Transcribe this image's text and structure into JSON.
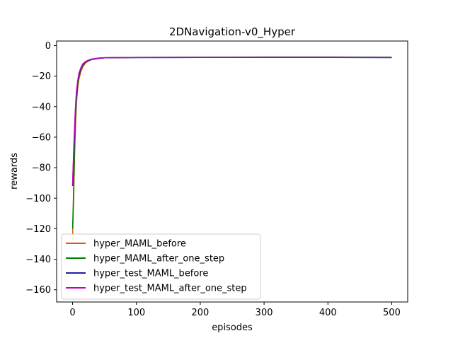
{
  "chart_data": {
    "type": "line",
    "title": "2DNavigation-v0_Hyper",
    "xlabel": "episodes",
    "ylabel": "rewards",
    "xlim": [
      -25,
      525
    ],
    "ylim": [
      -168,
      3
    ],
    "xticks": [
      0,
      100,
      200,
      300,
      400,
      500
    ],
    "yticks": [
      0,
      -20,
      -40,
      -60,
      -80,
      -100,
      -120,
      -140,
      -160
    ],
    "grid": false,
    "legend_position": "lower-left",
    "series": [
      {
        "name": "hyper_MAML_before",
        "color": "#e6550d",
        "values": [
          {
            "x": 0,
            "y": -125
          },
          {
            "x": 1,
            "y": -110
          },
          {
            "x": 2,
            "y": -95
          },
          {
            "x": 3,
            "y": -75
          },
          {
            "x": 4,
            "y": -60
          },
          {
            "x": 5,
            "y": -48
          },
          {
            "x": 6,
            "y": -38
          },
          {
            "x": 8,
            "y": -28
          },
          {
            "x": 10,
            "y": -22
          },
          {
            "x": 13,
            "y": -17
          },
          {
            "x": 16,
            "y": -14
          },
          {
            "x": 20,
            "y": -11.5
          },
          {
            "x": 25,
            "y": -10
          },
          {
            "x": 30,
            "y": -9.2
          },
          {
            "x": 40,
            "y": -8.5
          },
          {
            "x": 50,
            "y": -8
          },
          {
            "x": 100,
            "y": -7.8
          },
          {
            "x": 200,
            "y": -7.7
          },
          {
            "x": 300,
            "y": -7.6
          },
          {
            "x": 400,
            "y": -7.6
          },
          {
            "x": 500,
            "y": -7.7
          }
        ]
      },
      {
        "name": "hyper_MAML_after_one_step",
        "color": "#008000",
        "values": [
          {
            "x": 0,
            "y": -120
          },
          {
            "x": 1,
            "y": -105
          },
          {
            "x": 2,
            "y": -88
          },
          {
            "x": 3,
            "y": -70
          },
          {
            "x": 4,
            "y": -55
          },
          {
            "x": 5,
            "y": -44
          },
          {
            "x": 6,
            "y": -35
          },
          {
            "x": 8,
            "y": -26
          },
          {
            "x": 10,
            "y": -20
          },
          {
            "x": 13,
            "y": -16
          },
          {
            "x": 16,
            "y": -13
          },
          {
            "x": 20,
            "y": -11
          },
          {
            "x": 25,
            "y": -9.8
          },
          {
            "x": 30,
            "y": -9
          },
          {
            "x": 40,
            "y": -8.3
          },
          {
            "x": 50,
            "y": -8
          },
          {
            "x": 100,
            "y": -7.7
          },
          {
            "x": 200,
            "y": -7.6
          },
          {
            "x": 300,
            "y": -7.5
          },
          {
            "x": 400,
            "y": -7.5
          },
          {
            "x": 500,
            "y": -7.6
          }
        ]
      },
      {
        "name": "hyper_test_MAML_before",
        "color": "#1f1fa0",
        "values": [
          {
            "x": 0,
            "y": -92
          },
          {
            "x": 1,
            "y": -80
          },
          {
            "x": 2,
            "y": -68
          },
          {
            "x": 3,
            "y": -57
          },
          {
            "x": 4,
            "y": -47
          },
          {
            "x": 5,
            "y": -39
          },
          {
            "x": 6,
            "y": -32
          },
          {
            "x": 8,
            "y": -24
          },
          {
            "x": 10,
            "y": -19
          },
          {
            "x": 13,
            "y": -15
          },
          {
            "x": 16,
            "y": -12.5
          },
          {
            "x": 20,
            "y": -10.8
          },
          {
            "x": 25,
            "y": -9.8
          },
          {
            "x": 30,
            "y": -9
          },
          {
            "x": 40,
            "y": -8.4
          },
          {
            "x": 50,
            "y": -8
          },
          {
            "x": 100,
            "y": -7.9
          },
          {
            "x": 200,
            "y": -7.8
          },
          {
            "x": 300,
            "y": -7.8
          },
          {
            "x": 400,
            "y": -7.8
          },
          {
            "x": 500,
            "y": -7.9
          }
        ]
      },
      {
        "name": "hyper_test_MAML_after_one_step",
        "color": "#bf00bf",
        "values": [
          {
            "x": 0,
            "y": -91
          },
          {
            "x": 1,
            "y": -78
          },
          {
            "x": 2,
            "y": -66
          },
          {
            "x": 3,
            "y": -55
          },
          {
            "x": 4,
            "y": -45
          },
          {
            "x": 5,
            "y": -37
          },
          {
            "x": 6,
            "y": -30
          },
          {
            "x": 8,
            "y": -23
          },
          {
            "x": 10,
            "y": -18
          },
          {
            "x": 13,
            "y": -14.5
          },
          {
            "x": 16,
            "y": -12
          },
          {
            "x": 20,
            "y": -10.5
          },
          {
            "x": 25,
            "y": -9.5
          },
          {
            "x": 30,
            "y": -8.8
          },
          {
            "x": 40,
            "y": -8.2
          },
          {
            "x": 50,
            "y": -7.9
          },
          {
            "x": 100,
            "y": -7.8
          },
          {
            "x": 200,
            "y": -7.7
          },
          {
            "x": 300,
            "y": -7.7
          },
          {
            "x": 400,
            "y": -7.7
          },
          {
            "x": 500,
            "y": -7.8
          }
        ]
      }
    ]
  }
}
